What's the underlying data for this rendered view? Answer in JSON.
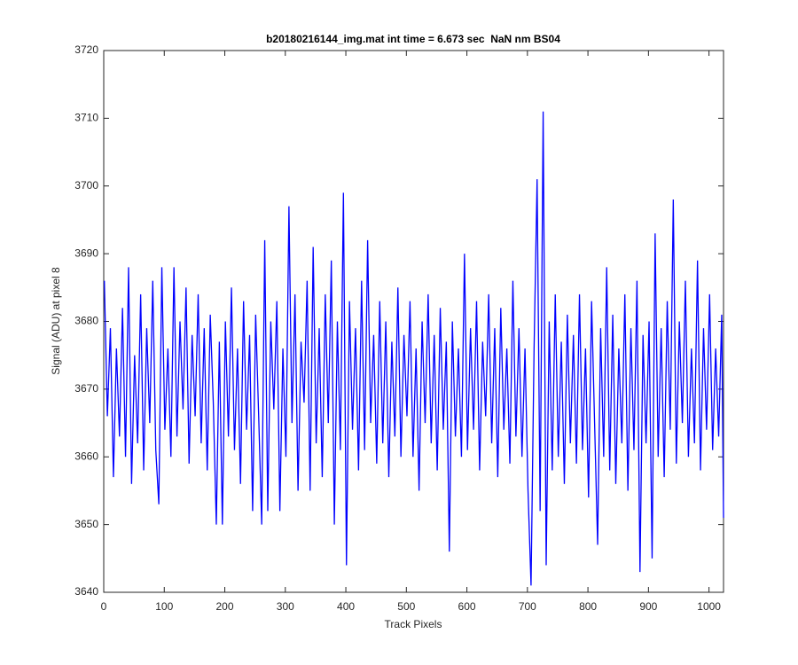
{
  "chart_data": {
    "type": "line",
    "title": "b20180216144_img.mat int time = 6.673 sec  NaN nm BS04",
    "x_label": "Track Pixels",
    "y_label": "Signal (ADU) at pixel 8",
    "color": "#0000ff",
    "xlim": [
      0,
      1024
    ],
    "xticks": [
      0,
      100,
      200,
      300,
      400,
      500,
      600,
      700,
      800,
      900,
      1000
    ],
    "ylim": [
      3640,
      3720
    ],
    "yticks": [
      3640,
      3650,
      3660,
      3670,
      3680,
      3690,
      3700,
      3710,
      3720
    ],
    "grid": false,
    "x": [
      1,
      6,
      11,
      16,
      21,
      26,
      31,
      36,
      41,
      46,
      51,
      56,
      61,
      66,
      71,
      76,
      81,
      86,
      91,
      96,
      101,
      106,
      111,
      116,
      121,
      126,
      131,
      136,
      141,
      146,
      151,
      156,
      161,
      166,
      171,
      176,
      181,
      186,
      191,
      196,
      201,
      206,
      211,
      216,
      221,
      226,
      231,
      236,
      241,
      246,
      251,
      256,
      261,
      266,
      271,
      276,
      281,
      286,
      291,
      296,
      301,
      306,
      311,
      316,
      321,
      326,
      331,
      336,
      341,
      346,
      351,
      356,
      361,
      366,
      371,
      376,
      381,
      386,
      391,
      396,
      401,
      406,
      411,
      416,
      421,
      426,
      431,
      436,
      441,
      446,
      451,
      456,
      461,
      466,
      471,
      476,
      481,
      486,
      491,
      496,
      501,
      506,
      511,
      516,
      521,
      526,
      531,
      536,
      541,
      546,
      551,
      556,
      561,
      566,
      571,
      576,
      581,
      586,
      591,
      596,
      601,
      606,
      611,
      616,
      621,
      626,
      631,
      636,
      641,
      646,
      651,
      656,
      661,
      666,
      671,
      676,
      681,
      686,
      691,
      696,
      701,
      706,
      711,
      716,
      721,
      726,
      731,
      736,
      741,
      746,
      751,
      756,
      761,
      766,
      771,
      776,
      781,
      786,
      791,
      796,
      801,
      806,
      811,
      816,
      821,
      826,
      831,
      836,
      841,
      846,
      851,
      856,
      861,
      866,
      871,
      876,
      881,
      886,
      891,
      896,
      901,
      906,
      911,
      916,
      921,
      926,
      931,
      936,
      941,
      946,
      951,
      956,
      961,
      966,
      971,
      976,
      981,
      986,
      991,
      996,
      1001,
      1006,
      1011,
      1016,
      1021,
      1024
    ],
    "values": [
      3686,
      3666,
      3679,
      3657,
      3676,
      3663,
      3682,
      3660,
      3688,
      3656,
      3675,
      3662,
      3684,
      3658,
      3679,
      3665,
      3686,
      3661,
      3653,
      3688,
      3664,
      3676,
      3660,
      3688,
      3663,
      3680,
      3667,
      3685,
      3659,
      3678,
      3666,
      3684,
      3662,
      3679,
      3658,
      3681,
      3668,
      3650,
      3677,
      3650,
      3680,
      3663,
      3685,
      3661,
      3676,
      3656,
      3683,
      3664,
      3678,
      3652,
      3681,
      3666,
      3650,
      3692,
      3652,
      3680,
      3667,
      3683,
      3652,
      3676,
      3660,
      3697,
      3665,
      3684,
      3655,
      3677,
      3668,
      3686,
      3655,
      3691,
      3662,
      3679,
      3657,
      3684,
      3665,
      3689,
      3650,
      3680,
      3661,
      3699,
      3644,
      3683,
      3664,
      3679,
      3658,
      3686,
      3661,
      3692,
      3665,
      3678,
      3659,
      3683,
      3662,
      3680,
      3657,
      3677,
      3663,
      3685,
      3660,
      3678,
      3666,
      3683,
      3660,
      3676,
      3655,
      3680,
      3665,
      3684,
      3662,
      3678,
      3658,
      3682,
      3664,
      3677,
      3646,
      3680,
      3663,
      3676,
      3660,
      3690,
      3661,
      3679,
      3664,
      3683,
      3658,
      3677,
      3666,
      3684,
      3662,
      3679,
      3657,
      3682,
      3664,
      3676,
      3659,
      3686,
      3663,
      3679,
      3660,
      3676,
      3655,
      3641,
      3676,
      3701,
      3652,
      3711,
      3644,
      3680,
      3658,
      3684,
      3660,
      3677,
      3656,
      3681,
      3662,
      3678,
      3659,
      3684,
      3661,
      3676,
      3654,
      3683,
      3665,
      3647,
      3679,
      3660,
      3688,
      3658,
      3681,
      3656,
      3676,
      3662,
      3684,
      3655,
      3679,
      3661,
      3686,
      3643,
      3678,
      3662,
      3680,
      3645,
      3693,
      3660,
      3679,
      3657,
      3683,
      3664,
      3698,
      3659,
      3680,
      3665,
      3686,
      3660,
      3676,
      3662,
      3689,
      3658,
      3679,
      3664,
      3684,
      3661,
      3676,
      3663,
      3681,
      3651
    ]
  }
}
